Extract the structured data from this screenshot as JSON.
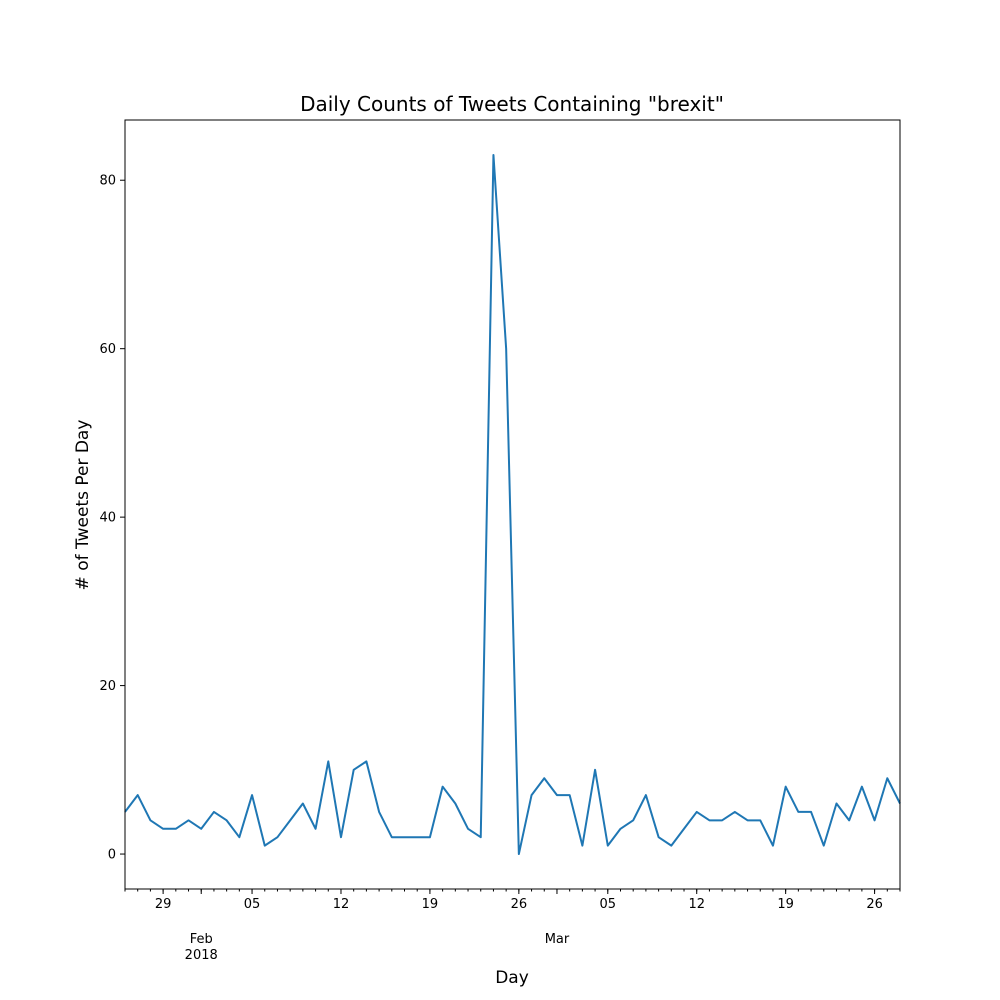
{
  "chart_data": {
    "type": "line",
    "title": "Daily Counts of Tweets Containing \"brexit\"",
    "xlabel": "Day",
    "ylabel": "# of Tweets Per Day",
    "x_start": "2018-01-26",
    "x_end": "2018-03-28",
    "xlim": [
      "2018-01-26",
      "2018-03-28"
    ],
    "ylim": [
      -4.15,
      87.15
    ],
    "y_ticks": [
      0,
      20,
      40,
      60,
      80
    ],
    "x_major_ticks": [
      {
        "date": "2018-01-29",
        "label": "29"
      },
      {
        "date": "2018-02-05",
        "label": "05"
      },
      {
        "date": "2018-02-12",
        "label": "12"
      },
      {
        "date": "2018-02-19",
        "label": "19"
      },
      {
        "date": "2018-02-26",
        "label": "26"
      },
      {
        "date": "2018-03-05",
        "label": "05"
      },
      {
        "date": "2018-03-12",
        "label": "12"
      },
      {
        "date": "2018-03-19",
        "label": "19"
      },
      {
        "date": "2018-03-26",
        "label": "26"
      }
    ],
    "x_secondary_labels": [
      {
        "date": "2018-02-01",
        "label": "Feb",
        "sub": "2018"
      },
      {
        "date": "2018-03-01",
        "label": "Mar",
        "sub": ""
      }
    ],
    "grid": false,
    "color": "#1f77b4",
    "values": [
      5,
      7,
      4,
      3,
      3,
      4,
      3,
      5,
      4,
      2,
      7,
      1,
      2,
      4,
      6,
      3,
      11,
      2,
      10,
      11,
      5,
      2,
      2,
      2,
      2,
      8,
      6,
      3,
      2,
      83,
      60,
      0,
      7,
      9,
      7,
      7,
      1,
      10,
      1,
      3,
      4,
      7,
      2,
      1,
      3,
      5,
      4,
      4,
      5,
      4,
      4,
      1,
      8,
      5,
      5,
      1,
      6,
      4,
      8,
      4,
      9,
      6
    ]
  }
}
